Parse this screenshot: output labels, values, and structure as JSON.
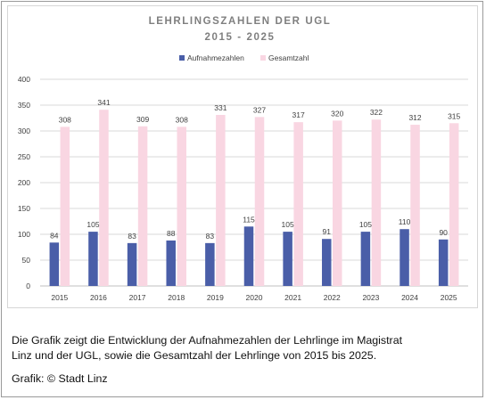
{
  "caption": {
    "line1": "Die Grafik zeigt die Entwicklung der Aufnahmezahlen der Lehrlinge im Magistrat",
    "line2": "Linz und der UGL, sowie die Gesamtzahl der Lehrlinge von 2015 bis 2025.",
    "credit": "Grafik: © Stadt Linz"
  },
  "chart_data": {
    "type": "bar",
    "title": "LEHRLINGSZAHLEN DER UGL",
    "subtitle": "2015 - 2025",
    "categories": [
      "2015",
      "2016",
      "2017",
      "2018",
      "2019",
      "2020",
      "2021",
      "2022",
      "2023",
      "2024",
      "2025"
    ],
    "series": [
      {
        "name": "Aufnahmezahlen",
        "color": "#4a5ea8",
        "values": [
          84,
          105,
          83,
          88,
          83,
          115,
          105,
          91,
          105,
          110,
          90
        ]
      },
      {
        "name": "Gesamtzahl",
        "color": "#f9d6e2",
        "values": [
          308,
          341,
          309,
          308,
          331,
          327,
          317,
          320,
          322,
          312,
          315
        ]
      }
    ],
    "yticks": [
      "0",
      "50",
      "100",
      "150",
      "200",
      "250",
      "300",
      "350",
      "400"
    ],
    "ylim": [
      0,
      400
    ],
    "grid": true,
    "legend": "top-center",
    "colors": {
      "title": "#7f7f7f",
      "axis_text": "#404040",
      "grid": "#d9d9d9",
      "label": "#404040"
    }
  }
}
